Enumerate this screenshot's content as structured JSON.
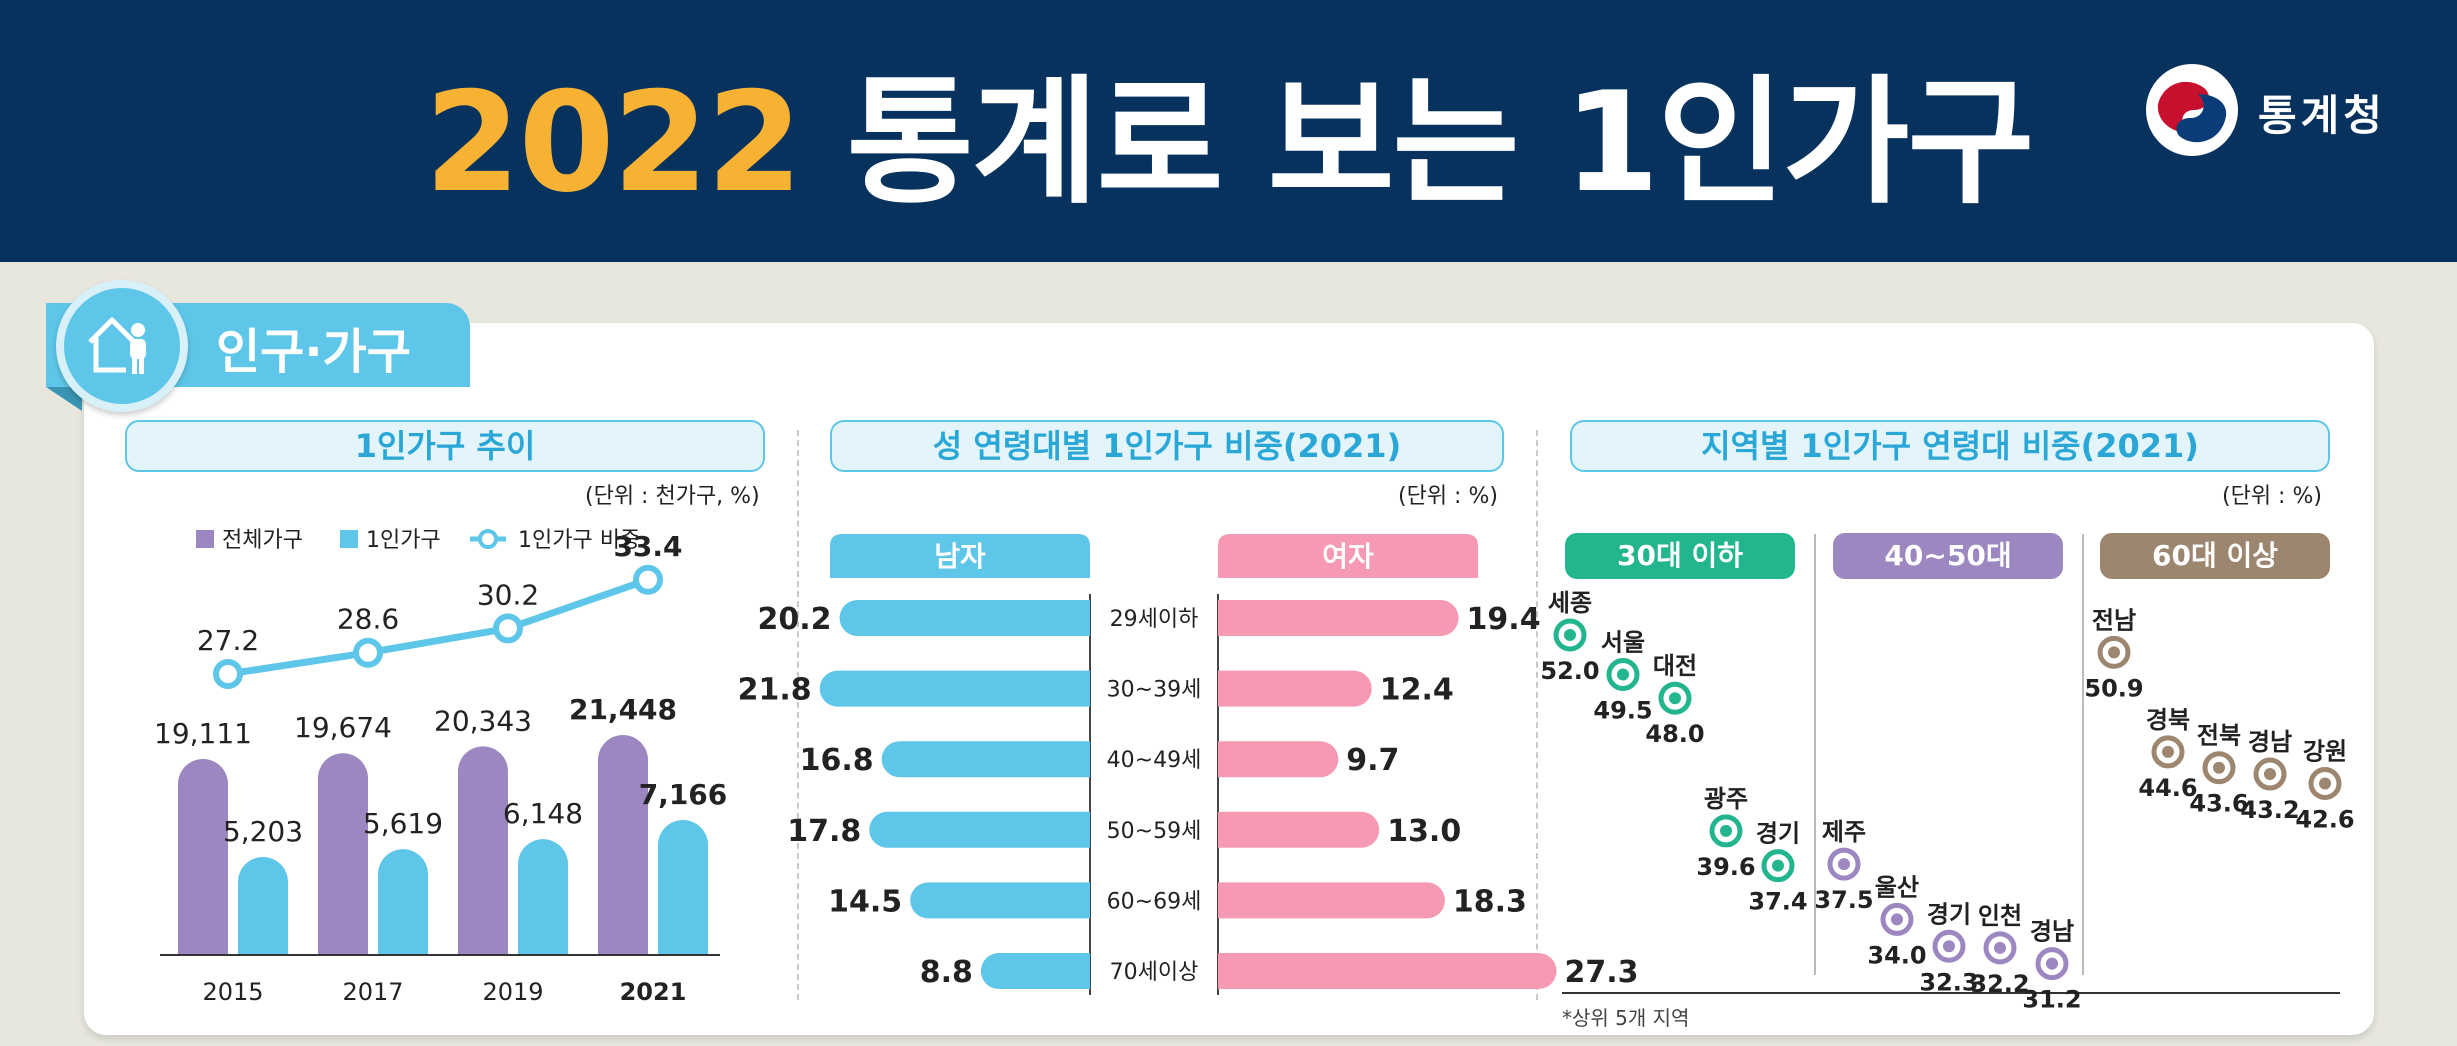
{
  "header": {
    "title_year": "2022",
    "title_rest": " 통계로 보는 1인가구",
    "logo_text": "통계청",
    "bg_color": "#07325e",
    "year_color": "#f7b234"
  },
  "section": {
    "label": "인구·가구",
    "icon": "house-person-icon",
    "color": "#5ec7e9"
  },
  "footnote": "*상위 5개 지역",
  "chart_data": [
    {
      "type": "bar",
      "title": "1인가구 추이",
      "unit": "(단위 : 천가구, %)",
      "categories": [
        "2015",
        "2017",
        "2019",
        "2021"
      ],
      "legend": [
        "전체가구",
        "1인가구",
        "1인가구 비중"
      ],
      "legend_placement": "top",
      "series": [
        {
          "name": "전체가구",
          "values": [
            19111,
            19674,
            20343,
            21448
          ],
          "labels": [
            "19,111",
            "19,674",
            "20,343",
            "21,448"
          ],
          "color": "#9d87c0"
        },
        {
          "name": "1인가구",
          "values": [
            5203,
            5619,
            6148,
            7166
          ],
          "labels": [
            "5,203",
            "5,619",
            "6,148",
            "7,166"
          ],
          "color": "#5ec7e9"
        },
        {
          "name": "1인가구 비중",
          "type": "line",
          "values": [
            27.2,
            28.6,
            30.2,
            33.4
          ],
          "labels": [
            "27.2",
            "28.6",
            "30.2",
            "33.4"
          ],
          "color": "#5ec7e9"
        }
      ]
    },
    {
      "type": "bar",
      "orientation": "horizontal",
      "title": "성 연령대별 1인가구 비중(2021)",
      "unit": "(단위 : %)",
      "categories": [
        "29세이하",
        "30~39세",
        "40~49세",
        "50~59세",
        "60~69세",
        "70세이상"
      ],
      "series": [
        {
          "name": "남자",
          "values": [
            20.2,
            21.8,
            16.8,
            17.8,
            14.5,
            8.8
          ],
          "labels": [
            "20.2",
            "21.8",
            "16.8",
            "17.8",
            "14.5",
            "8.8"
          ],
          "color": "#5ec7e9"
        },
        {
          "name": "여자",
          "values": [
            19.4,
            12.4,
            9.7,
            13.0,
            18.3,
            27.3
          ],
          "labels": [
            "19.4",
            "12.4",
            "9.7",
            "13.0",
            "18.3",
            "27.3"
          ],
          "color": "#f59ab2"
        }
      ]
    },
    {
      "type": "scatter",
      "title": "지역별 1인가구 연령대 비중(2021)",
      "unit": "(단위 : %)",
      "groups": [
        {
          "name": "30대 이하",
          "color": "#22b58e",
          "points": [
            {
              "region": "세종",
              "value": 52.0,
              "label": "52.0"
            },
            {
              "region": "서울",
              "value": 49.5,
              "label": "49.5"
            },
            {
              "region": "대전",
              "value": 48.0,
              "label": "48.0"
            },
            {
              "region": "광주",
              "value": 39.6,
              "label": "39.6"
            },
            {
              "region": "경기",
              "value": 37.4,
              "label": "37.4"
            }
          ]
        },
        {
          "name": "40~50대",
          "color": "#9d87c0",
          "points": [
            {
              "region": "제주",
              "value": 37.5,
              "label": "37.5"
            },
            {
              "region": "울산",
              "value": 34.0,
              "label": "34.0"
            },
            {
              "region": "경기",
              "value": 32.3,
              "label": "32.3"
            },
            {
              "region": "인천",
              "value": 32.2,
              "label": "32.2"
            },
            {
              "region": "경남",
              "value": 31.2,
              "label": "31.2"
            }
          ]
        },
        {
          "name": "60대 이상",
          "color": "#9c8670",
          "points": [
            {
              "region": "전남",
              "value": 50.9,
              "label": "50.9"
            },
            {
              "region": "경북",
              "value": 44.6,
              "label": "44.6"
            },
            {
              "region": "전북",
              "value": 43.6,
              "label": "43.6"
            },
            {
              "region": "경남",
              "value": 43.2,
              "label": "43.2"
            },
            {
              "region": "강원",
              "value": 42.6,
              "label": "42.6"
            }
          ]
        }
      ]
    }
  ]
}
